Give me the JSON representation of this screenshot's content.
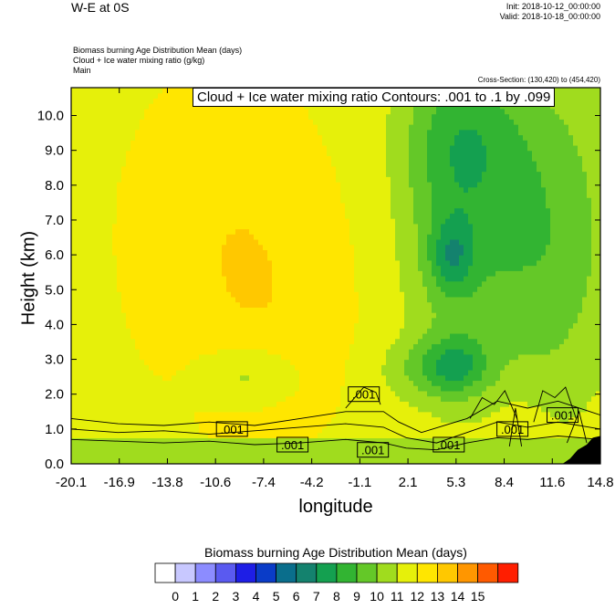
{
  "header": {
    "title": "W-E at 0S",
    "init": "Init: 2018-10-12_00:00:00",
    "valid": "Valid: 2018-10-18_00:00:00",
    "desc_lines": [
      "Biomass burning Age Distribution Mean    (days)",
      "Cloud + Ice water mixing ratio    (g/kg)",
      "Main"
    ],
    "cross_section": "Cross-Section: (130,420) to (454,420)",
    "contour_info": "Cloud + Ice water mixing ratio Contours: .001 to .1 by .099"
  },
  "colors": {
    "palette": [
      "#ffffff",
      "#c8c8ff",
      "#8c8cff",
      "#5a5af0",
      "#1e1ee6",
      "#0a3cc8",
      "#0a6e8c",
      "#14826e",
      "#14a050",
      "#32b432",
      "#64c828",
      "#a0dc1e",
      "#e6f00a",
      "#ffe600",
      "#ffc800",
      "#ff9600",
      "#ff5a00",
      "#ff1e00"
    ],
    "terrain": "#000000",
    "contour": "#000000"
  },
  "chart_data": {
    "type": "heatmap",
    "title": "W-E at 0S",
    "xlabel": "longitude",
    "ylabel": "Height (km)",
    "xlim": [
      -20.1,
      14.8
    ],
    "ylim": [
      0.0,
      10.8
    ],
    "x_ticks": [
      "-20.1",
      "-16.9",
      "-13.8",
      "-10.6",
      "-7.4",
      "-4.2",
      "-1.1",
      "2.1",
      "5.3",
      "8.4",
      "11.6",
      "14.8"
    ],
    "y_ticks": [
      "0.0",
      "1.0",
      "2.0",
      "3.0",
      "4.0",
      "5.0",
      "6.0",
      "7.0",
      "8.0",
      "9.0",
      "10.0"
    ],
    "colorbar": {
      "title": "Biomass burning Age Distribution Mean  (days)",
      "labels": [
        "0",
        "1",
        "2",
        "3",
        "4",
        "5",
        "6",
        "7",
        "8",
        "9",
        "10",
        "11",
        "12",
        "13",
        "14",
        "15"
      ]
    },
    "contour_labels": [
      {
        "text": ".001",
        "lon": -9.5,
        "h": 1.0
      },
      {
        "text": ".001",
        "lon": -5.5,
        "h": 0.55
      },
      {
        "text": ".001",
        "lon": -0.8,
        "h": 2.0
      },
      {
        "text": ".001",
        "lon": -0.2,
        "h": 0.4
      },
      {
        "text": ".001",
        "lon": 4.8,
        "h": 0.55
      },
      {
        "text": ".001",
        "lon": 9.0,
        "h": 1.0
      },
      {
        "text": ".001",
        "lon": 12.3,
        "h": 1.4
      }
    ]
  }
}
